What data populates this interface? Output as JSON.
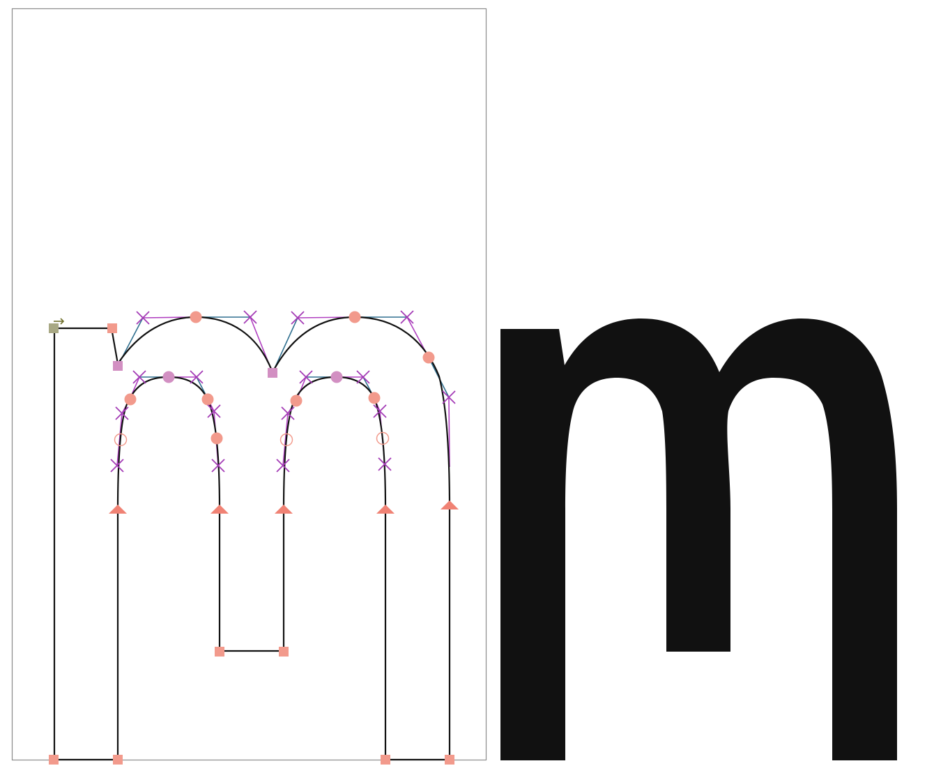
{
  "glyph": {
    "character": "m",
    "panels": [
      "outline-with-control-points",
      "filled-preview"
    ]
  },
  "colors": {
    "outline": "#111111",
    "fill": "#111111",
    "frame": "#8a8a8a",
    "on_curve_point": "#f29a8c",
    "smooth_point": "#d28fc2",
    "off_curve_handle": "#a43bb6",
    "handle_line": "#2f6f8f",
    "start_point": "#a8a884",
    "start_arrow": "#6e6e2a"
  },
  "icons": {
    "start_marker": "arrow-right-icon",
    "corner_point": "square-marker-icon",
    "curve_point": "circle-marker-icon",
    "tangent_point": "triangle-marker-icon",
    "control_point": "cross-marker-icon"
  }
}
